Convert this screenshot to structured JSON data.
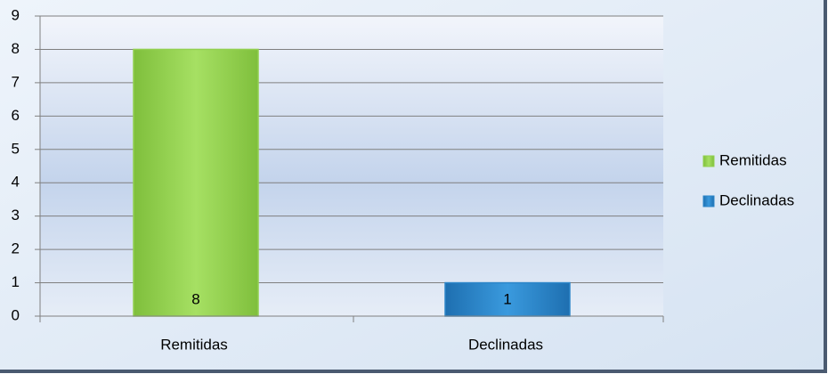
{
  "chart_data": {
    "type": "bar",
    "categories": [
      "Remitidas",
      "Declinadas"
    ],
    "values": [
      8,
      1
    ],
    "colors": [
      "#92d050",
      "#2d86c9"
    ],
    "ylim": [
      0,
      9
    ],
    "yticks": [
      0,
      1,
      2,
      3,
      4,
      5,
      6,
      7,
      8,
      9
    ],
    "grid": true,
    "legend": "right"
  }
}
